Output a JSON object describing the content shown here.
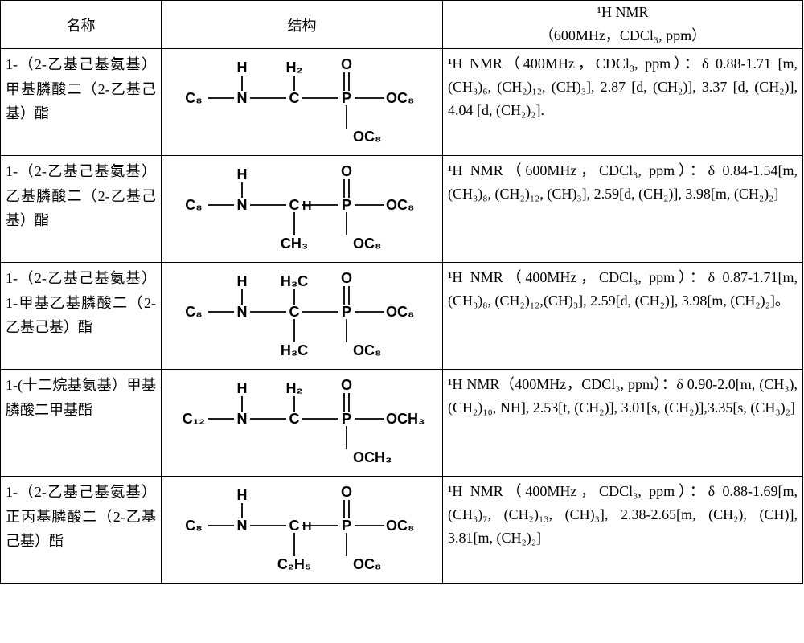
{
  "colors": {
    "border": "#000000",
    "text": "#000000",
    "background": "#ffffff",
    "chem_line": "#000000"
  },
  "header": {
    "name": "名称",
    "structure": "结构",
    "nmr_line1": "¹H NMR",
    "nmr_line2": "（600MHz，CDCl₃, ppm）"
  },
  "rows": [
    {
      "name": "1-（2-乙基己基氨基）甲基膦酸二（2-乙基己基）酯",
      "struct": {
        "r1": "C₈",
        "c_top": "H₂",
        "c_bottom": "",
        "c_label": "C",
        "oc_right": "OC₈",
        "oc_bottom": "OC₈"
      },
      "nmr": "¹H NMR（400MHz，CDCl₃, ppm）：δ 0.88-1.71 [m, (CH₃)₆, (CH₂)₁₂, (CH)₃], 2.87 [d, (CH₂)], 3.37 [d, (CH₂)], 4.04 [d, (CH₂)₂]."
    },
    {
      "name": "1-（2-乙基己基氨基）乙基膦酸二（2-乙基己基）酯",
      "struct": {
        "r1": "C₈",
        "c_top": "",
        "c_bottom": "CH₃",
        "c_label": "C",
        "c_h_right": "H",
        "oc_right": "OC₈",
        "oc_bottom": "OC₈"
      },
      "nmr": "¹H NMR（600MHz，CDCl₃, ppm）：δ 0.84-1.54[m, (CH₃)₈, (CH₂)₁₂, (CH)₃], 2.59[d, (CH₂)], 3.98[m, (CH₂)₂]"
    },
    {
      "name": "1-（2-乙基己基氨基）1-甲基乙基膦酸二（2-乙基己基）酯",
      "struct": {
        "r1": "C₈",
        "c_top": "H₃C",
        "c_bottom": "H₃C",
        "c_label": "C",
        "oc_right": "OC₈",
        "oc_bottom": "OC₈"
      },
      "nmr": "¹H NMR（400MHz，CDCl₃, ppm）：δ 0.87-1.71[m, (CH₃)₈, (CH₂)₁₂,(CH)₃], 2.59[d, (CH₂)], 3.98[m, (CH₂)₂]。"
    },
    {
      "name": "1-(十二烷基氨基）甲基膦酸二甲基酯",
      "struct": {
        "r1": "C₁₂",
        "c_top": "H₂",
        "c_bottom": "",
        "c_label": "C",
        "oc_right": "OCH₃",
        "oc_bottom": "OCH₃"
      },
      "nmr": "¹H NMR（400MHz，CDCl₃, ppm）：δ 0.90-2.0[m, (CH₃), (CH₂)₁₀, NH], 2.53[t, (CH₂)], 3.01[s, (CH₂)],3.35[s, (CH₃)₂]"
    },
    {
      "name": "1-（2-乙基己基氨基）正丙基膦酸二（2-乙基己基）酯",
      "struct": {
        "r1": "C₈",
        "c_top": "",
        "c_bottom": "C₂H₅",
        "c_label": "C",
        "c_h_right": "H",
        "oc_right": "OC₈",
        "oc_bottom": "OC₈"
      },
      "nmr": "¹H NMR（400MHz，CDCl₃, ppm）：δ 0.88-1.69[m, (CH₃)₇, (CH₂)₁₃, (CH)₃], 2.38-2.65[m, (CH₂), (CH)], 3.81[m, (CH₂)₂]"
    }
  ]
}
